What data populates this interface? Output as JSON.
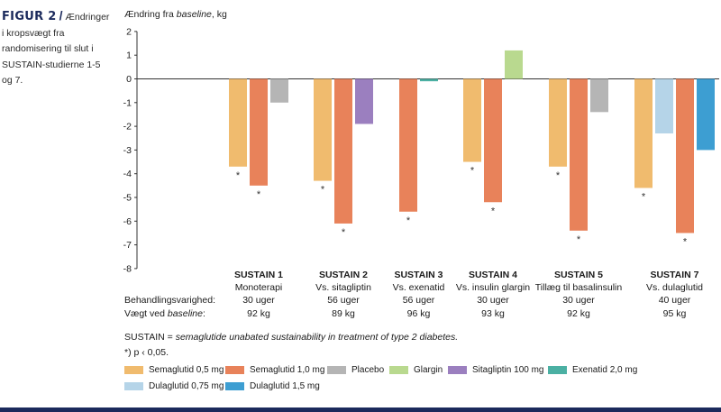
{
  "figure": {
    "label": "FIGUR 2",
    "slash": "/",
    "caption": "Ændringer i kropsvægt fra randomisering til slut i SUSTAIN-studierne 1-5 og 7."
  },
  "chart_data": {
    "type": "bar",
    "ylabel_prefix": "Ændring fra ",
    "ylabel_italic": "baseline",
    "ylabel_suffix": ", kg",
    "ylim": [
      -8,
      2
    ],
    "yticks": [
      "2",
      "1",
      "0",
      "-1",
      "-2",
      "-3",
      "-4",
      "-5",
      "-6",
      "-7",
      "-8"
    ],
    "colors": {
      "sema05": "#f0bb6e",
      "sema10": "#e8825a",
      "placebo": "#b5b5b5",
      "glargin": "#b9d98f",
      "sitagliptin": "#9b7fbf",
      "exenatid": "#4bb0a3",
      "dula075": "#b5d4e8",
      "dula15": "#3d9ed2"
    },
    "groups": [
      {
        "name": "SUSTAIN 1",
        "comparator": "Monoterapi",
        "duration": "30 uger",
        "weight": "92 kg",
        "bars": [
          {
            "series": "sema05",
            "value": -3.7,
            "sig": true
          },
          {
            "series": "sema10",
            "value": -4.5,
            "sig": true
          },
          {
            "series": "placebo",
            "value": -1.0,
            "sig": false
          }
        ]
      },
      {
        "name": "SUSTAIN 2",
        "comparator": "Vs. sitagliptin",
        "duration": "56 uger",
        "weight": "89 kg",
        "bars": [
          {
            "series": "sema05",
            "value": -4.3,
            "sig": true
          },
          {
            "series": "sema10",
            "value": -6.1,
            "sig": true
          },
          {
            "series": "sitagliptin",
            "value": -1.9,
            "sig": false
          }
        ]
      },
      {
        "name": "SUSTAIN 3",
        "comparator": "Vs. exenatid",
        "duration": "56 uger",
        "weight": "96 kg",
        "bars": [
          {
            "series": "sema10",
            "value": -5.6,
            "sig": true
          },
          {
            "series": "exenatid",
            "value": -0.1,
            "sig": false
          }
        ]
      },
      {
        "name": "SUSTAIN 4",
        "comparator": "Vs. insulin glargin",
        "duration": "30 uger",
        "weight": "93 kg",
        "bars": [
          {
            "series": "sema05",
            "value": -3.5,
            "sig": true
          },
          {
            "series": "sema10",
            "value": -5.2,
            "sig": true
          },
          {
            "series": "glargin",
            "value": 1.2,
            "sig": false
          }
        ]
      },
      {
        "name": "SUSTAIN 5",
        "comparator": "Tillæg til basalinsulin",
        "duration": "30 uger",
        "weight": "92 kg",
        "bars": [
          {
            "series": "sema05",
            "value": -3.7,
            "sig": true
          },
          {
            "series": "sema10",
            "value": -6.4,
            "sig": true
          },
          {
            "series": "placebo",
            "value": -1.4,
            "sig": false
          }
        ]
      },
      {
        "name": "SUSTAIN 7",
        "comparator": "Vs. dulaglutid",
        "duration": "40 uger",
        "weight": "95 kg",
        "bars": [
          {
            "series": "sema05",
            "value": -4.6,
            "sig": true
          },
          {
            "series": "dula075",
            "value": -2.3,
            "sig": false
          },
          {
            "series": "sema10",
            "value": -6.5,
            "sig": true
          },
          {
            "series": "dula15",
            "value": -3.0,
            "sig": false
          }
        ]
      }
    ],
    "sig_marker": "*",
    "legend": [
      {
        "series": "sema05",
        "label": "Semaglutid 0,5 mg"
      },
      {
        "series": "sema10",
        "label": "Semaglutid 1,0 mg"
      },
      {
        "series": "placebo",
        "label": "Placebo"
      },
      {
        "series": "glargin",
        "label": "Glargin"
      },
      {
        "series": "sitagliptin",
        "label": "Sitagliptin 100 mg"
      },
      {
        "series": "exenatid",
        "label": "Exenatid 2,0 mg"
      },
      {
        "series": "dula075",
        "label": "Dulaglutid 0,75 mg"
      },
      {
        "series": "dula15",
        "label": "Dulaglutid 1,5 mg"
      }
    ]
  },
  "rows": {
    "duration_label": "Behandlingsvarighed:",
    "weight_label_prefix": "Vægt ved ",
    "weight_label_italic": "baseline",
    "weight_label_suffix": ":"
  },
  "footnotes": {
    "abbr_prefix": "SUSTAIN = ",
    "abbr_italic": "semaglutide unabated sustainability in treatment of type 2 diabetes.",
    "sig": "*) p ‹ 0,05."
  }
}
